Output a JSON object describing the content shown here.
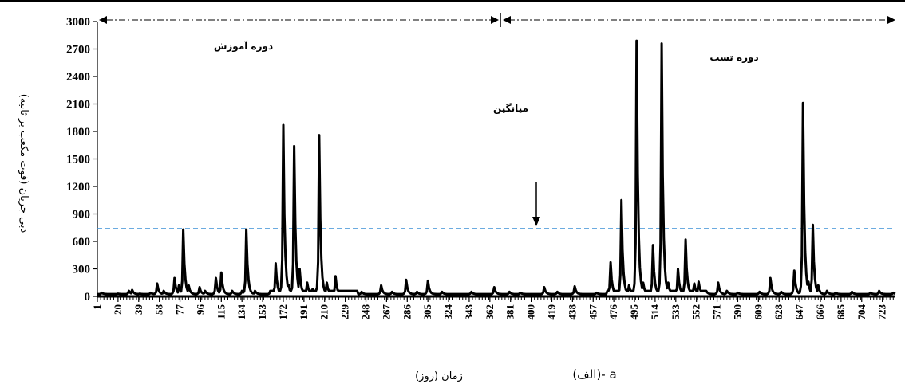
{
  "chart_data": {
    "type": "line",
    "title": "",
    "ylabel": "دبی جریان (فوت مکعب بر ثانیه)",
    "xlabel": "زمان (روز)",
    "caption": "(الف)- a",
    "ylim": [
      0,
      3000
    ],
    "xlim": [
      1,
      735
    ],
    "y_ticks": [
      "0",
      "300",
      "600",
      "900",
      "1200",
      "1500",
      "1800",
      "2100",
      "2400",
      "2700",
      "3000"
    ],
    "x_ticks": [
      "1",
      "20",
      "39",
      "58",
      "77",
      "96",
      "115",
      "134",
      "153",
      "172",
      "191",
      "210",
      "229",
      "248",
      "267",
      "286",
      "305",
      "324",
      "343",
      "362",
      "381",
      "400",
      "419",
      "438",
      "457",
      "476",
      "495",
      "514",
      "533",
      "552",
      "571",
      "590",
      "609",
      "628",
      "647",
      "666",
      "685",
      "704",
      "723"
    ],
    "mean_value": 740,
    "annotations": {
      "training": "دوره آموزش",
      "test": "دوره تست",
      "mean": "میانگین"
    },
    "colors": {
      "series": "#000000",
      "mean_line": "#3a8fd6"
    },
    "series": [
      {
        "peaks": [
          [
            5,
            40
          ],
          [
            10,
            25
          ],
          [
            20,
            30
          ],
          [
            30,
            60
          ],
          [
            33,
            70
          ],
          [
            40,
            30
          ],
          [
            50,
            40
          ],
          [
            56,
            140
          ],
          [
            62,
            60
          ],
          [
            72,
            200
          ],
          [
            76,
            120
          ],
          [
            80,
            730
          ],
          [
            85,
            120
          ],
          [
            95,
            100
          ],
          [
            100,
            60
          ],
          [
            110,
            200
          ],
          [
            115,
            260
          ],
          [
            125,
            60
          ],
          [
            134,
            60
          ],
          [
            138,
            730
          ],
          [
            146,
            60
          ],
          [
            160,
            50
          ],
          [
            165,
            360
          ],
          [
            172,
            1870
          ],
          [
            177,
            120
          ],
          [
            182,
            1640
          ],
          [
            187,
            300
          ],
          [
            194,
            150
          ],
          [
            199,
            80
          ],
          [
            205,
            1760
          ],
          [
            212,
            150
          ],
          [
            220,
            220
          ],
          [
            230,
            60
          ],
          [
            244,
            50
          ],
          [
            262,
            120
          ],
          [
            272,
            50
          ],
          [
            285,
            180
          ],
          [
            295,
            50
          ],
          [
            305,
            170
          ],
          [
            318,
            50
          ],
          [
            345,
            50
          ],
          [
            366,
            100
          ],
          [
            380,
            50
          ],
          [
            390,
            40
          ],
          [
            412,
            100
          ],
          [
            424,
            50
          ],
          [
            440,
            110
          ],
          [
            460,
            40
          ],
          [
            473,
            370
          ],
          [
            483,
            1050
          ],
          [
            490,
            120
          ],
          [
            497,
            2790
          ],
          [
            503,
            150
          ],
          [
            512,
            560
          ],
          [
            520,
            2760
          ],
          [
            526,
            150
          ],
          [
            535,
            300
          ],
          [
            542,
            620
          ],
          [
            550,
            140
          ],
          [
            554,
            160
          ],
          [
            561,
            60
          ],
          [
            572,
            150
          ],
          [
            580,
            60
          ],
          [
            590,
            40
          ],
          [
            610,
            50
          ],
          [
            620,
            200
          ],
          [
            630,
            50
          ],
          [
            642,
            280
          ],
          [
            650,
            2110
          ],
          [
            655,
            160
          ],
          [
            659,
            780
          ],
          [
            664,
            120
          ],
          [
            672,
            60
          ],
          [
            680,
            40
          ],
          [
            695,
            50
          ],
          [
            712,
            40
          ],
          [
            720,
            60
          ],
          [
            733,
            40
          ]
        ],
        "baseline": 25
      }
    ]
  }
}
